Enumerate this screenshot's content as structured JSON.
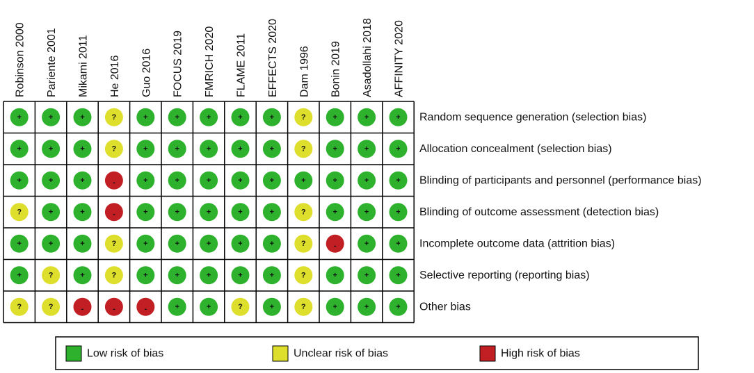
{
  "studies": [
    "Robinson 2000",
    "Pariente 2001",
    "Mikami 2011",
    "He 2016",
    "Guo 2016",
    "FOCUS 2019",
    "FMRICH 2020",
    "FLAME 2011",
    "EFFECTS 2020",
    "Dam 1996",
    "Bonin 2019",
    "Asadollahi 2018",
    "AFFINITY 2020"
  ],
  "domains": [
    "Random sequence generation (selection bias)",
    "Allocation concealment (selection bias)",
    "Blinding of participants and personnel (performance bias)",
    "Blinding of outcome assessment (detection bias)",
    "Incomplete outcome data (attrition bias)",
    "Selective reporting (reporting bias)",
    "Other bias"
  ],
  "ratings": [
    [
      "+",
      "+",
      "+",
      "?",
      "+",
      "+",
      "+",
      "+",
      "+",
      "?",
      "+",
      "+",
      "+"
    ],
    [
      "+",
      "+",
      "+",
      "?",
      "+",
      "+",
      "+",
      "+",
      "+",
      "?",
      "+",
      "+",
      "+"
    ],
    [
      "+",
      "+",
      "+",
      "-",
      "+",
      "+",
      "+",
      "+",
      "+",
      "+",
      "+",
      "+",
      "+"
    ],
    [
      "?",
      "+",
      "+",
      "-",
      "+",
      "+",
      "+",
      "+",
      "+",
      "?",
      "+",
      "+",
      "+"
    ],
    [
      "+",
      "+",
      "+",
      "?",
      "+",
      "+",
      "+",
      "+",
      "+",
      "?",
      "-",
      "+",
      "+"
    ],
    [
      "+",
      "?",
      "+",
      "?",
      "+",
      "+",
      "+",
      "+",
      "+",
      "?",
      "+",
      "+",
      "+"
    ],
    [
      "?",
      "?",
      "-",
      "-",
      "-",
      "+",
      "+",
      "?",
      "+",
      "?",
      "+",
      "+",
      "+"
    ]
  ],
  "legend": [
    {
      "symbol": "+",
      "label": "Low risk of bias",
      "color": "#2eb22e"
    },
    {
      "symbol": "?",
      "label": "Unclear risk of bias",
      "color": "#dede2c"
    },
    {
      "symbol": "-",
      "label": "High risk of bias",
      "color": "#c11f24"
    }
  ]
}
